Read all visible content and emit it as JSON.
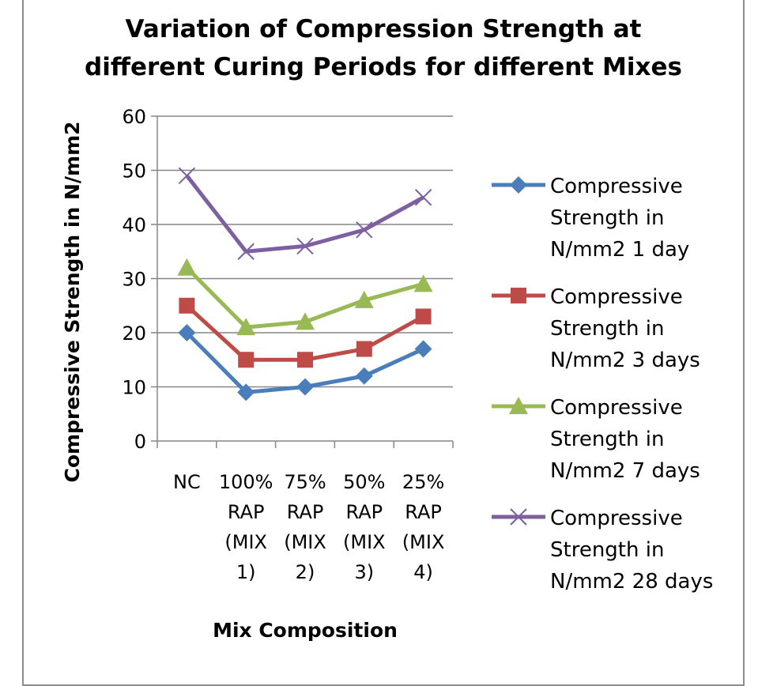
{
  "chart_data": {
    "type": "line",
    "title": [
      "Variation of Compression Strength at",
      "different Curing Periods for different Mixes"
    ],
    "xlabel": "Mix Composition",
    "ylabel": "Compressive Strength in N/mm2",
    "ylim": [
      0,
      60
    ],
    "yticks": [
      "0",
      "10",
      "20",
      "30",
      "40",
      "50",
      "60"
    ],
    "grid": true,
    "legend_position": "right",
    "categories": [
      [
        "NC"
      ],
      [
        "100%",
        "RAP",
        "(MIX",
        "1)"
      ],
      [
        "75%",
        "RAP",
        "(MIX",
        "2)"
      ],
      [
        "50%",
        "RAP",
        "(MIX",
        "3)"
      ],
      [
        "25%",
        "RAP",
        "(MIX",
        "4)"
      ]
    ],
    "series": [
      {
        "name": [
          "Compressive",
          "Strength in",
          "N/mm2 1 day"
        ],
        "values": [
          20,
          9,
          10,
          12,
          17
        ],
        "color": "#4a7ebb",
        "marker": "diamond"
      },
      {
        "name": [
          "Compressive",
          "Strength in",
          "N/mm2 3 days"
        ],
        "values": [
          25,
          15,
          15,
          17,
          23
        ],
        "color": "#be4b48",
        "marker": "square"
      },
      {
        "name": [
          "Compressive",
          "Strength in",
          "N/mm2 7 days"
        ],
        "values": [
          32,
          21,
          22,
          26,
          29
        ],
        "color": "#98b954",
        "marker": "triangle"
      },
      {
        "name": [
          "Compressive",
          "Strength in",
          "N/mm2 28 days"
        ],
        "values": [
          49,
          35,
          36,
          39,
          45
        ],
        "color": "#7d60a0",
        "marker": "x"
      }
    ]
  }
}
